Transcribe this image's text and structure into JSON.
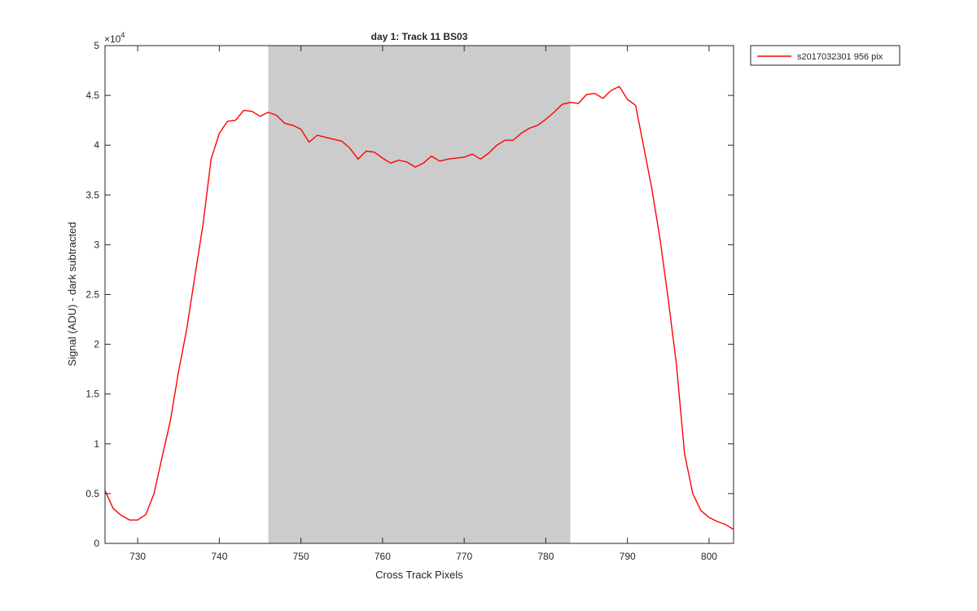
{
  "chart_data": {
    "type": "line",
    "title": "day 1: Track 11  BS03",
    "xlabel": "Cross Track Pixels",
    "ylabel": "Signal (ADU) - dark subtracted",
    "exponent_label": "×10",
    "exponent_power": "4",
    "xlim": [
      726,
      803
    ],
    "ylim": [
      0,
      5
    ],
    "xticks": [
      730,
      740,
      750,
      760,
      770,
      780,
      790,
      800
    ],
    "yticks": [
      0,
      0.5,
      1,
      1.5,
      2,
      2.5,
      3,
      3.5,
      4,
      4.5,
      5
    ],
    "ytick_labels": [
      "0",
      "0.5",
      "1",
      "1.5",
      "2",
      "2.5",
      "3",
      "3.5",
      "4",
      "4.5",
      "5"
    ],
    "shaded_region": {
      "x_start": 746,
      "x_end": 783,
      "color": "#cccccc"
    },
    "legend_position": "outside-top-right",
    "series": [
      {
        "name": "s2017032301 956 pix",
        "color": "#ff0000",
        "x": [
          726,
          727,
          728,
          729,
          730,
          731,
          732,
          733,
          734,
          735,
          736,
          737,
          738,
          739,
          740,
          741,
          742,
          743,
          744,
          745,
          746,
          747,
          748,
          749,
          750,
          751,
          752,
          753,
          754,
          755,
          756,
          757,
          758,
          759,
          760,
          761,
          762,
          763,
          764,
          765,
          766,
          767,
          768,
          769,
          770,
          771,
          772,
          773,
          774,
          775,
          776,
          777,
          778,
          779,
          780,
          781,
          782,
          783,
          784,
          785,
          786,
          787,
          788,
          789,
          790,
          791,
          792,
          793,
          794,
          795,
          796,
          797,
          798,
          799,
          800,
          801,
          802,
          803
        ],
        "values": [
          0.53,
          0.35,
          0.28,
          0.235,
          0.235,
          0.29,
          0.5,
          0.87,
          1.23,
          1.72,
          2.15,
          2.68,
          3.2,
          3.86,
          4.12,
          4.24,
          4.25,
          4.35,
          4.34,
          4.29,
          4.33,
          4.3,
          4.22,
          4.2,
          4.16,
          4.03,
          4.1,
          4.08,
          4.06,
          4.04,
          3.97,
          3.86,
          3.94,
          3.93,
          3.87,
          3.82,
          3.85,
          3.83,
          3.78,
          3.82,
          3.89,
          3.84,
          3.86,
          3.87,
          3.88,
          3.91,
          3.86,
          3.92,
          4.0,
          4.05,
          4.05,
          4.12,
          4.17,
          4.2,
          4.26,
          4.33,
          4.41,
          4.43,
          4.42,
          4.51,
          4.52,
          4.47,
          4.55,
          4.59,
          4.46,
          4.4,
          3.98,
          3.56,
          3.05,
          2.45,
          1.8,
          0.9,
          0.5,
          0.33,
          0.26,
          0.22,
          0.19,
          0.14
        ]
      }
    ]
  }
}
